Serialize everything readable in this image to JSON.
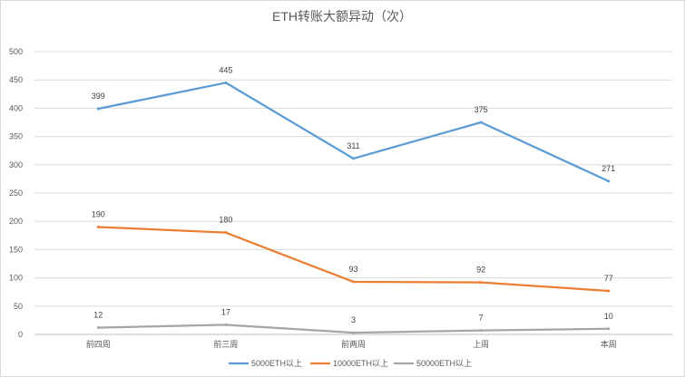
{
  "chart_data": {
    "type": "line",
    "title": "ETH转账大额异动（次）",
    "categories": [
      "前四周",
      "前三周",
      "前两周",
      "上周",
      "本周"
    ],
    "ylim": [
      0,
      500
    ],
    "yticks": [
      0,
      50,
      100,
      150,
      200,
      250,
      300,
      350,
      400,
      450,
      500
    ],
    "grid": true,
    "legend": "bottom",
    "series": [
      {
        "name": "5000ETH以上",
        "color": "#5b9bd5",
        "values": [
          399,
          445,
          311,
          375,
          271
        ]
      },
      {
        "name": "10000ETH以上",
        "color": "#ed7d31",
        "values": [
          190,
          180,
          93,
          92,
          77
        ]
      },
      {
        "name": "50000ETH以上",
        "color": "#a5a5a5",
        "values": [
          12,
          17,
          3,
          7,
          10
        ]
      }
    ]
  }
}
